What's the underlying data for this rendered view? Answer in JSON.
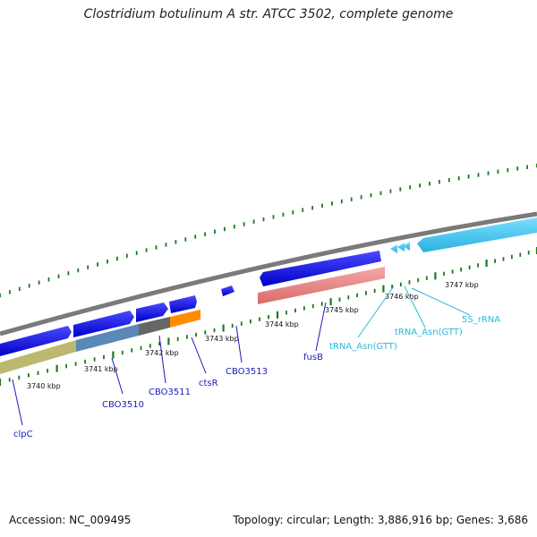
{
  "title": "Clostridium botulinum A str. ATCC 3502, complete genome",
  "footer": {
    "accession": "Accession: NC_009495",
    "summary": "Topology: circular; Length: 3,886,916 bp; Genes: 3,686"
  },
  "ticks": [
    "3740 kbp",
    "3741 kbp",
    "3742 kbp",
    "3743 kbp",
    "3744 kbp",
    "3745 kbp",
    "3746 kbp",
    "3747 kbp"
  ],
  "genes": [
    "clpC",
    "CBO3510",
    "CBO3511",
    "ctsR",
    "CBO3513",
    "fusB"
  ],
  "rnas": [
    "tRNA_Asn(GTT)",
    "tRNA_Asn(GTT)",
    "5S_rRNA"
  ],
  "colors": {
    "cds": "#1010e0",
    "rrna": "#3ac8f0",
    "backbone": "#888888",
    "dots": "#1a7a1a",
    "cog_olive": "#bcb870",
    "cog_steel": "#5a88b8",
    "cog_gray": "#666666",
    "cog_orange": "#ff8c00",
    "cog_pink": "#f08888"
  }
}
